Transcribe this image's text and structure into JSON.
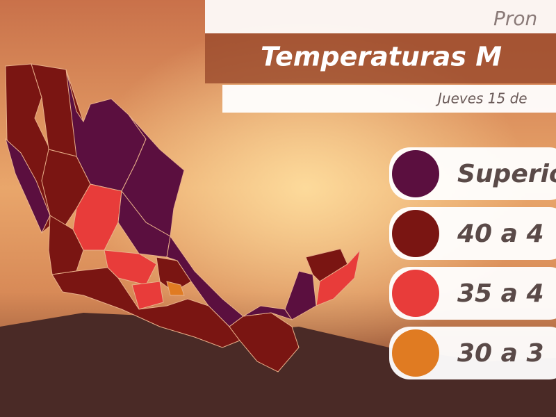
{
  "header": {
    "kicker": "Pron",
    "title": "Temperaturas M",
    "date": "Jueves 15 de"
  },
  "legend": [
    {
      "label": "Superio",
      "color": "#5b0f3f"
    },
    {
      "label": "40 a 4",
      "color": "#7a1512"
    },
    {
      "label": "35 a 4",
      "color": "#e83c3a"
    },
    {
      "label": "30 a 3",
      "color": "#e07b22"
    }
  ]
}
